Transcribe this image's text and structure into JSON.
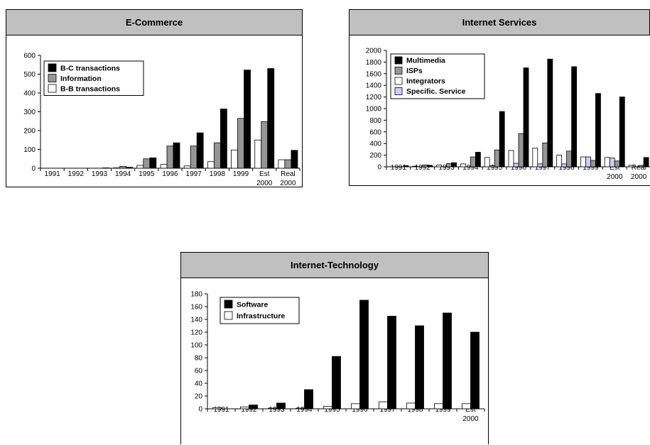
{
  "colors": {
    "black": "#000000",
    "gray": "#969696",
    "white": "#ffffff",
    "lavender": "#ccccff",
    "header": "#c0c0c0"
  },
  "chart_data": [
    {
      "id": "ecommerce",
      "type": "bar",
      "title": "E-Commerce",
      "categories": [
        [
          "1991"
        ],
        [
          "1992"
        ],
        [
          "1993"
        ],
        [
          "1994"
        ],
        [
          "1995"
        ],
        [
          "1996"
        ],
        [
          "1997"
        ],
        [
          "1998"
        ],
        [
          "1999"
        ],
        [
          "Est",
          "2000"
        ],
        [
          "Real",
          "2000"
        ]
      ],
      "ylim": [
        0,
        600
      ],
      "yticks": [
        0,
        100,
        200,
        300,
        400,
        500,
        600
      ],
      "legend_position": "top-left",
      "series_draw_order": [
        2,
        1,
        0
      ],
      "series": [
        {
          "name": "B-C transactions",
          "color": "#000000",
          "values": [
            0,
            0,
            2,
            5,
            55,
            135,
            188,
            315,
            522,
            530,
            95
          ]
        },
        {
          "name": "Information",
          "color": "#969696",
          "values": [
            0,
            0,
            0,
            10,
            50,
            118,
            118,
            135,
            265,
            248,
            45
          ]
        },
        {
          "name": "B-B transactions",
          "color": "#ffffff",
          "values": [
            0,
            0,
            0,
            2,
            15,
            20,
            12,
            35,
            97,
            150,
            45
          ]
        }
      ]
    },
    {
      "id": "internet-services",
      "type": "bar",
      "title": "Internet Services",
      "categories": [
        [
          "1991"
        ],
        [
          "1992"
        ],
        [
          "1993"
        ],
        [
          "1994"
        ],
        [
          "1995"
        ],
        [
          "1996"
        ],
        [
          "1997"
        ],
        [
          "1998"
        ],
        [
          "1999"
        ],
        [
          "Est",
          "2000"
        ],
        [
          "Real",
          "2000"
        ]
      ],
      "ylim": [
        0,
        2000
      ],
      "yticks": [
        0,
        200,
        400,
        600,
        800,
        1000,
        1200,
        1400,
        1600,
        1800,
        2000
      ],
      "legend_position": "top-left",
      "series_draw_order": [
        2,
        3,
        1,
        0
      ],
      "series": [
        {
          "name": "Multimedia",
          "color": "#000000",
          "values": [
            20,
            25,
            70,
            250,
            950,
            1700,
            1850,
            1720,
            1260,
            1200,
            160
          ]
        },
        {
          "name": "ISPs",
          "color": "#969696",
          "values": [
            0,
            30,
            55,
            170,
            290,
            570,
            410,
            270,
            110,
            100,
            25
          ]
        },
        {
          "name": "Integrators",
          "color": "#ffffff",
          "values": [
            0,
            10,
            30,
            50,
            160,
            280,
            320,
            200,
            170,
            160,
            25
          ]
        },
        {
          "name": "Specific. Service",
          "color": "#ccccff",
          "values": [
            0,
            0,
            0,
            0,
            20,
            60,
            50,
            50,
            170,
            150,
            0
          ]
        }
      ]
    },
    {
      "id": "internet-technology",
      "type": "bar",
      "title": "Internet-Technology",
      "categories": [
        [
          "1991"
        ],
        [
          "1992"
        ],
        [
          "1993"
        ],
        [
          "1994"
        ],
        [
          "1995"
        ],
        [
          "1996"
        ],
        [
          "1997"
        ],
        [
          "1998"
        ],
        [
          "1999"
        ],
        [
          "Est",
          "2000"
        ]
      ],
      "ylim": [
        0,
        180
      ],
      "yticks": [
        0,
        20,
        40,
        60,
        80,
        100,
        120,
        140,
        160,
        180
      ],
      "legend_position": "top-left",
      "series_draw_order": [
        1,
        0
      ],
      "series": [
        {
          "name": "Software",
          "color": "#000000",
          "values": [
            0,
            6,
            9,
            30,
            82,
            170,
            145,
            130,
            150,
            120
          ]
        },
        {
          "name": "Infrastructure",
          "color": "#ffffff",
          "values": [
            2,
            3,
            1,
            1,
            4,
            8,
            11,
            9,
            8,
            8
          ]
        }
      ]
    }
  ]
}
